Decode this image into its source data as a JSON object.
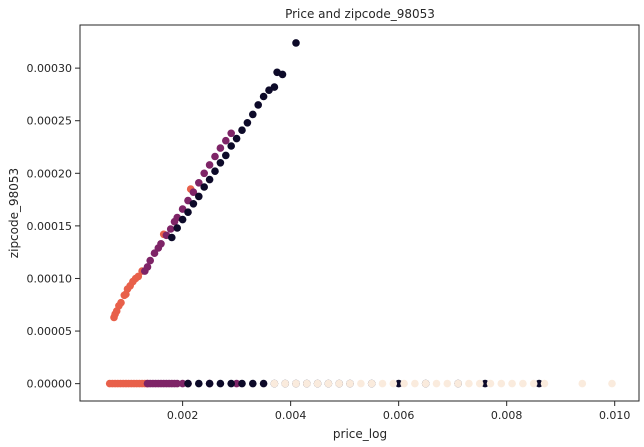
{
  "chart_data": {
    "type": "scatter",
    "title": "Price and zipcode_98053",
    "xlabel": "price_log",
    "ylabel": "zipcode_98053",
    "xlim": [
      0.0001,
      0.01045
    ],
    "ylim": [
      -1.65e-05,
      0.000341
    ],
    "x_ticks": [
      0.002,
      0.004,
      0.006,
      0.008,
      0.01
    ],
    "x_tick_labels": [
      "0.002",
      "0.004",
      "0.006",
      "0.008",
      "0.010"
    ],
    "y_ticks": [
      0.0,
      5e-05,
      0.0001,
      0.00015,
      0.0002,
      0.00025,
      0.0003
    ],
    "y_tick_labels": [
      "0.00000",
      "0.00005",
      "0.00010",
      "0.00015",
      "0.00020",
      "0.00025",
      "0.00030"
    ],
    "grid": false,
    "legend": "none",
    "colors": {
      "orange": "#e8604a",
      "purple": "#7e2467",
      "navy": "#0d0a29",
      "cream": "#faebdd"
    },
    "series": [
      {
        "color_key": "orange",
        "x": [
          0.00073,
          0.00075,
          0.00078,
          0.00082,
          0.00086,
          0.00092,
          0.00095,
          0.00098,
          0.00103,
          0.00108,
          0.00113,
          0.00118,
          0.00125,
          0.00165,
          0.00215,
          0.00065,
          0.0007,
          0.00075,
          0.0008,
          0.00085,
          0.0009,
          0.00095,
          0.001,
          0.00105,
          0.0011,
          0.00115,
          0.0012,
          0.00125,
          0.0013,
          0.00135
        ],
        "y": [
          6.3e-05,
          6.6e-05,
          6.9e-05,
          7.4e-05,
          7.7e-05,
          8.4e-05,
          8.5e-05,
          9e-05,
          9.3e-05,
          9.7e-05,
          0.0001,
          0.000102,
          0.000107,
          0.000142,
          0.000185,
          0,
          0,
          0,
          0,
          0,
          0,
          0,
          0,
          0,
          0,
          0,
          0,
          0,
          0,
          0
        ]
      },
      {
        "color_key": "purple",
        "x": [
          0.0013,
          0.00135,
          0.0014,
          0.00148,
          0.00155,
          0.0016,
          0.0017,
          0.00178,
          0.00185,
          0.0019,
          0.002,
          0.0021,
          0.0022,
          0.0023,
          0.0024,
          0.0025,
          0.0026,
          0.0027,
          0.0028,
          0.0029,
          0.00135,
          0.0014,
          0.00145,
          0.0015,
          0.00155,
          0.0016,
          0.00165,
          0.0017,
          0.00175,
          0.0018,
          0.00185,
          0.0019,
          0.002,
          0.0021,
          0.0025,
          0.003
        ],
        "y": [
          0.000107,
          0.000111,
          0.000117,
          0.000124,
          0.000129,
          0.000133,
          0.000141,
          0.000147,
          0.000154,
          0.000158,
          0.000166,
          0.000174,
          0.000182,
          0.000191,
          0.0002,
          0.000208,
          0.000216,
          0.000224,
          0.000231,
          0.000238,
          0,
          0,
          0,
          0,
          0,
          0,
          0,
          0,
          0,
          0,
          0,
          0,
          0,
          0,
          0,
          0
        ]
      },
      {
        "color_key": "navy",
        "x": [
          0.0018,
          0.0019,
          0.002,
          0.0021,
          0.0022,
          0.0023,
          0.0024,
          0.0025,
          0.0026,
          0.0027,
          0.0028,
          0.0029,
          0.003,
          0.0031,
          0.0032,
          0.0033,
          0.0034,
          0.0035,
          0.0036,
          0.0037,
          0.00375,
          0.00385,
          0.0041,
          0.0021,
          0.0023,
          0.0025,
          0.0027,
          0.0029,
          0.0031,
          0.0033,
          0.0035,
          0.0037,
          0.0039,
          0.0041,
          0.0043,
          0.0045,
          0.0047,
          0.0049,
          0.0051,
          0.0055,
          0.006,
          0.0065,
          0.0071,
          0.0076,
          0.0086
        ],
        "y": [
          0.000139,
          0.000148,
          0.000156,
          0.000163,
          0.000171,
          0.000178,
          0.000187,
          0.000194,
          0.000202,
          0.00021,
          0.000217,
          0.000226,
          0.000233,
          0.000241,
          0.000248,
          0.000256,
          0.000265,
          0.000273,
          0.000279,
          0.000282,
          0.000296,
          0.000294,
          0.000324,
          0,
          0,
          0,
          0,
          0,
          0,
          0,
          0,
          0,
          0,
          0,
          0,
          0,
          0,
          0,
          0,
          0,
          0,
          0,
          0,
          0,
          0
        ]
      },
      {
        "color_key": "cream",
        "x": [
          0.0037,
          0.0039,
          0.0041,
          0.0043,
          0.0045,
          0.0047,
          0.0049,
          0.0051,
          0.0053,
          0.0055,
          0.0057,
          0.0059,
          0.0061,
          0.0063,
          0.0065,
          0.0067,
          0.0069,
          0.0071,
          0.0073,
          0.0075,
          0.0077,
          0.0079,
          0.0081,
          0.0083,
          0.0085,
          0.0087,
          0.0094,
          0.00995
        ],
        "y": [
          0,
          0,
          0,
          0,
          0,
          0,
          0,
          0,
          0,
          0,
          0,
          0,
          0,
          0,
          0,
          0,
          0,
          0,
          0,
          0,
          0,
          0,
          0,
          0,
          0,
          0,
          0,
          0
        ]
      }
    ]
  }
}
